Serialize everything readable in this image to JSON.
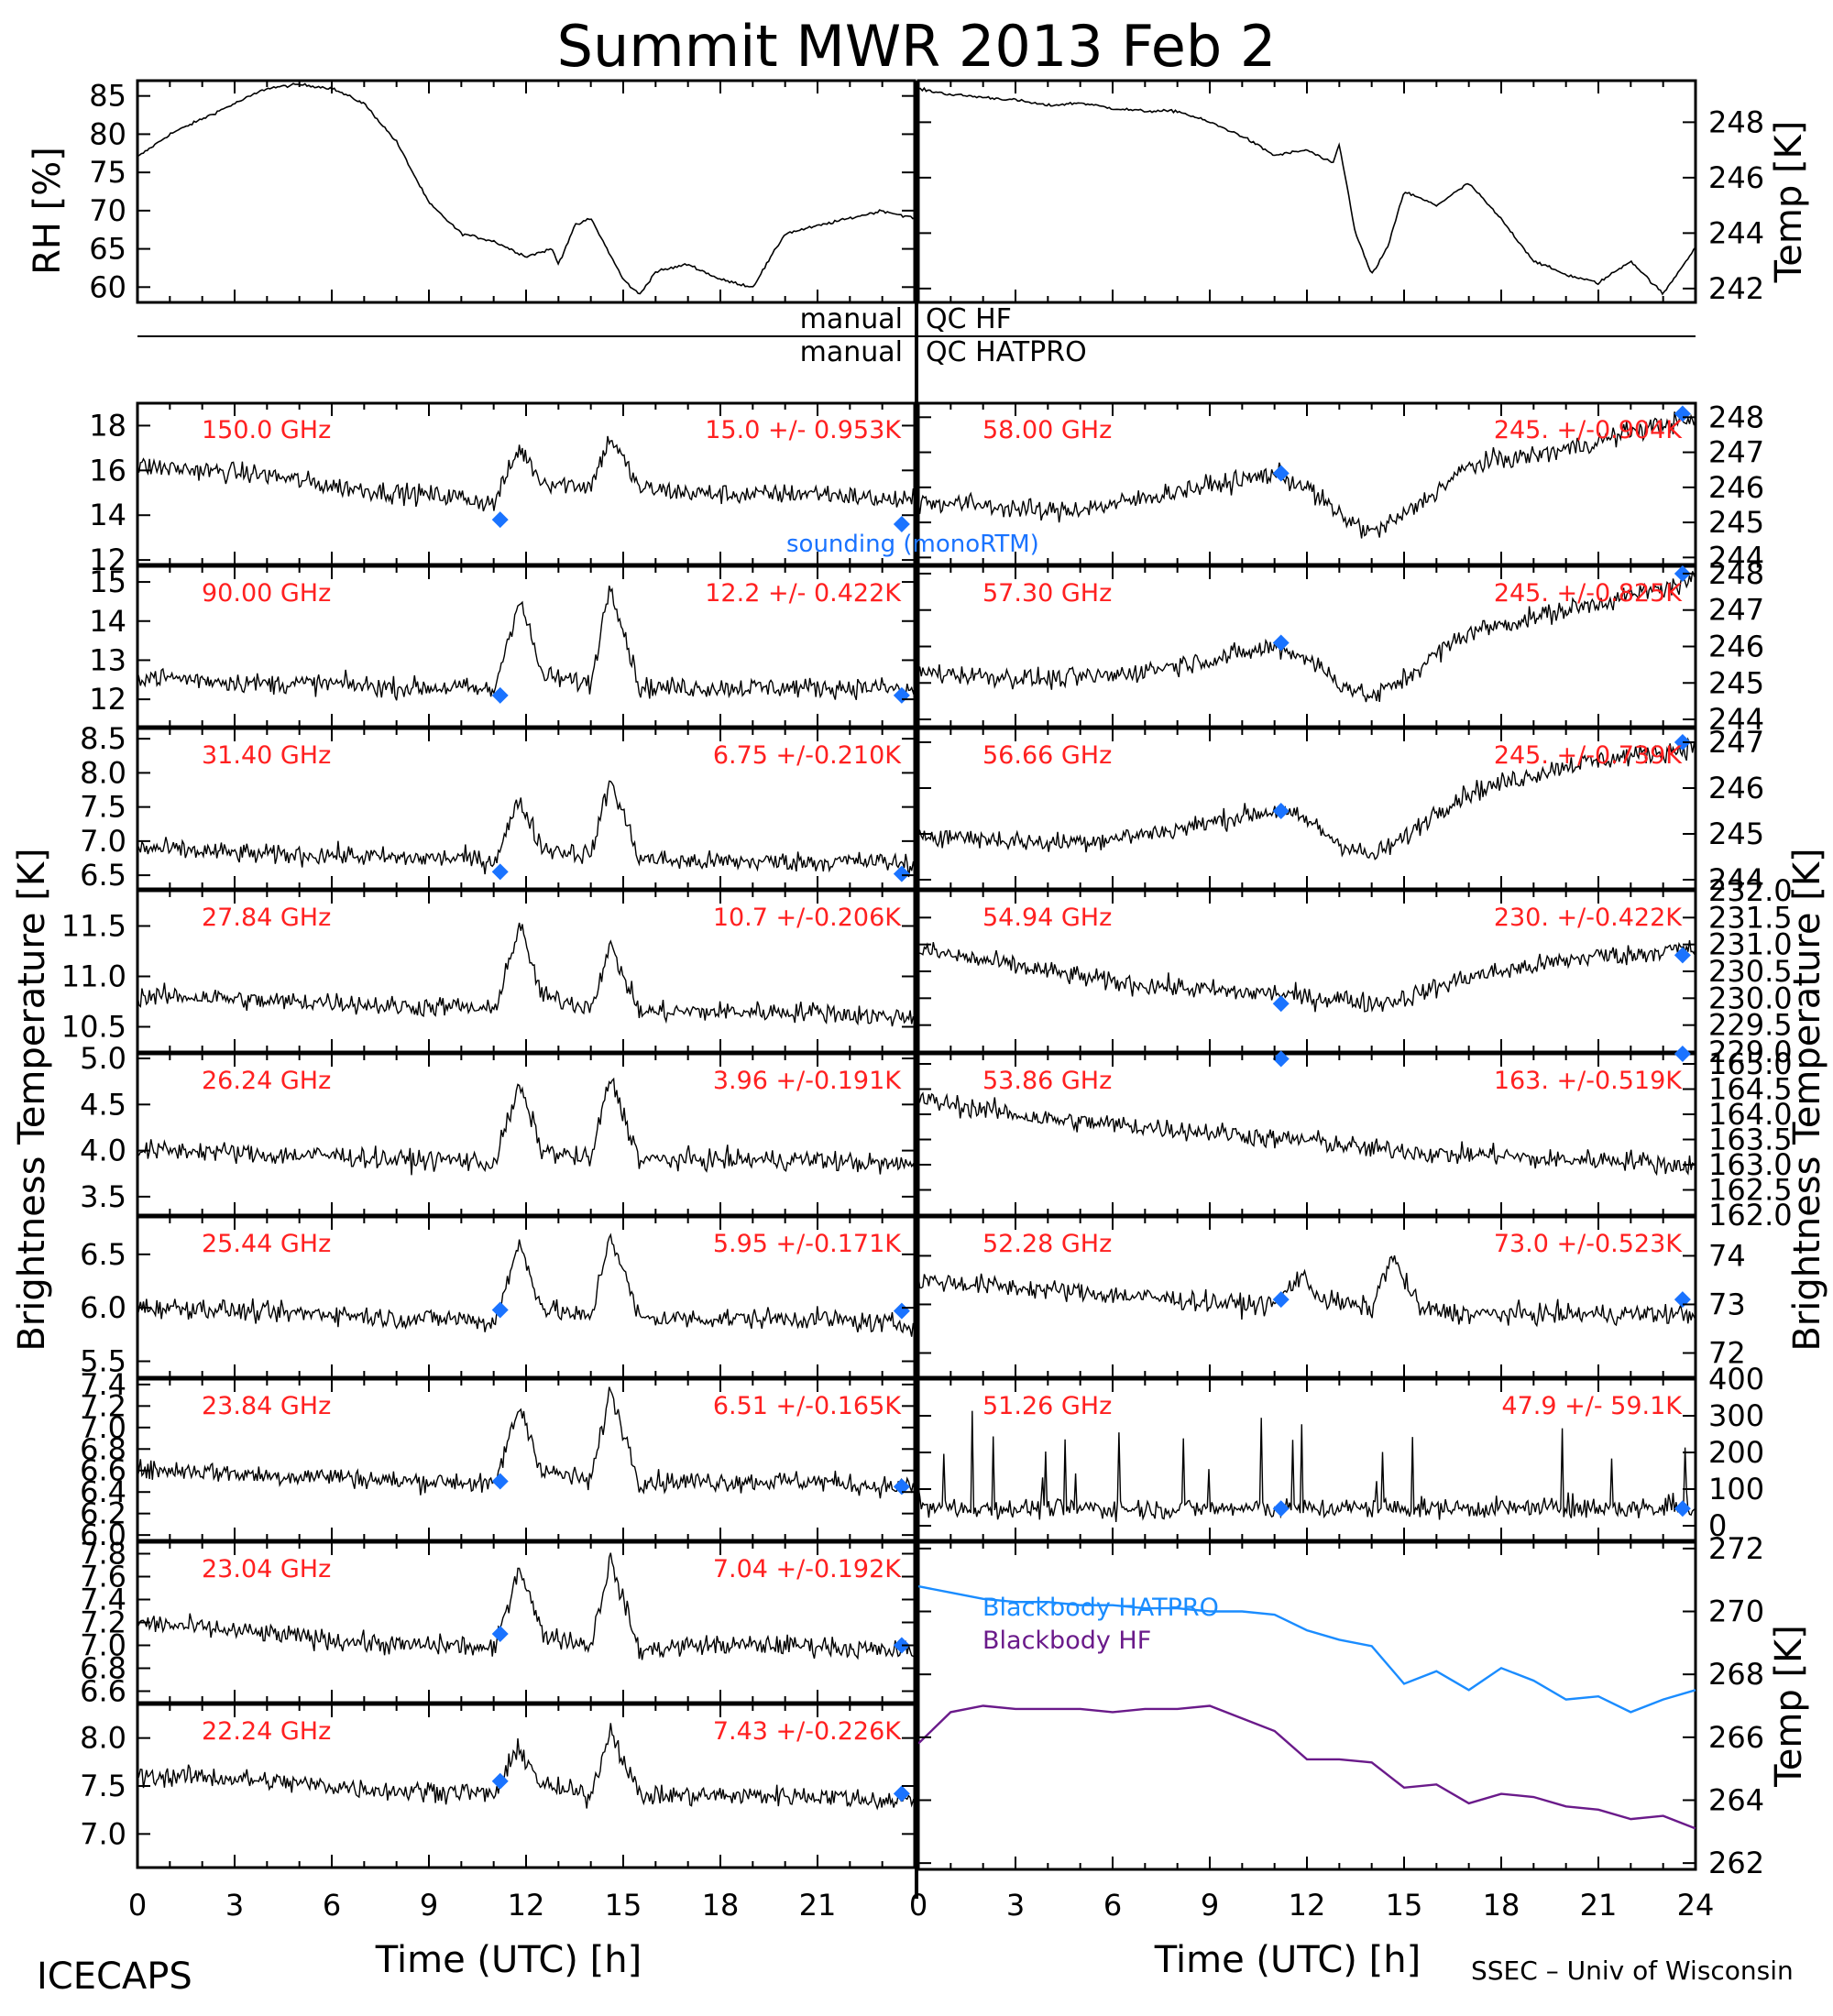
{
  "title": "Summit MWR 2013 Feb  2",
  "footer": {
    "left": "ICECAPS",
    "right": "SSEC – Univ of Wisconsin"
  },
  "qc": {
    "hf_left": "manual",
    "hf_right": "QC HF",
    "hatpro_left": "manual",
    "hatpro_right": "QC HATPRO"
  },
  "axes": {
    "x_label": "Time (UTC) [h]",
    "x_ticks": [
      "0",
      "3",
      "6",
      "9",
      "12",
      "15",
      "18",
      "21"
    ],
    "x_ticks_right": [
      "0",
      "3",
      "6",
      "9",
      "12",
      "15",
      "18",
      "21",
      "24"
    ],
    "y_label_left": "Brightness Temperature [K]",
    "y_label_right": "Brightness Temperature [K]",
    "rh_label": "RH [%]",
    "temp_label": "Temp [K]",
    "bb_temp_label": "Temp [K]"
  },
  "colors": {
    "stats": "#ff2020",
    "sounding": "#1a73ff",
    "hatpro": "#1a8cff",
    "hf": "#6a1a8a",
    "trace": "#000000"
  },
  "chart_data": [
    {
      "id": "rh",
      "type": "line",
      "ylabel": "RH [%]",
      "xlim": [
        0,
        24
      ],
      "ylim": [
        58,
        87
      ],
      "yticks": [
        "60",
        "65",
        "70",
        "75",
        "80",
        "85"
      ],
      "x": [
        0,
        1,
        2,
        3,
        4,
        5,
        6,
        7,
        8,
        9,
        10,
        11,
        12,
        12.8,
        13,
        13.5,
        14,
        14.5,
        15,
        15.5,
        16,
        17,
        18,
        19,
        20,
        21,
        22,
        23,
        24
      ],
      "y": [
        77,
        80,
        82,
        84,
        86,
        86.5,
        86,
        84,
        79,
        71,
        67,
        66,
        64,
        65,
        63,
        68,
        69,
        65,
        61,
        59,
        62,
        63,
        61,
        60,
        67,
        68,
        69,
        70,
        69
      ]
    },
    {
      "id": "temp",
      "type": "line",
      "ylabel": "Temp [K]",
      "xlim": [
        0,
        24
      ],
      "ylim": [
        241.5,
        249.5
      ],
      "yticks": [
        "242",
        "244",
        "246",
        "248"
      ],
      "x": [
        0,
        1,
        2,
        3,
        4,
        5,
        6,
        7,
        8,
        9,
        10,
        11,
        12,
        12.8,
        13,
        13.5,
        14,
        14.5,
        15,
        16,
        17,
        18,
        19,
        20,
        21,
        22,
        23,
        24
      ],
      "y": [
        249.2,
        249,
        248.9,
        248.8,
        248.6,
        248.7,
        248.5,
        248.4,
        248.4,
        248,
        247.5,
        246.8,
        247,
        246.5,
        247.2,
        244,
        242.5,
        243.5,
        245.5,
        245,
        245.8,
        244.5,
        243,
        242.5,
        242.2,
        243,
        241.8,
        243.5
      ]
    },
    {
      "id": "ch150",
      "type": "scatter",
      "freq": "150.0 GHz",
      "stat": "15.0 +/- 0.953K",
      "ylim": [
        11.8,
        19
      ],
      "yticks": [
        "12",
        "14",
        "16",
        "18"
      ],
      "x": [
        0,
        2,
        4,
        6,
        8,
        10,
        11,
        11.8,
        12.5,
        14,
        14.6,
        15.5,
        17,
        19,
        21,
        23,
        24
      ],
      "y": [
        16.2,
        16,
        15.8,
        15.3,
        15,
        14.8,
        14.5,
        17,
        15.5,
        15.3,
        17.5,
        15.2,
        15,
        14.9,
        15,
        14.7,
        14.6
      ],
      "sounding": [
        {
          "x": 11.2,
          "y": 13.8
        },
        {
          "x": 23.6,
          "y": 13.6
        }
      ],
      "legend": "sounding (monoRTM)"
    },
    {
      "id": "ch90",
      "type": "scatter",
      "freq": "90.00 GHz",
      "stat": "12.2 +/- 0.422K",
      "ylim": [
        11.3,
        15.4
      ],
      "yticks": [
        "12",
        "13",
        "14",
        "15"
      ],
      "x": [
        0,
        2,
        4,
        6,
        8,
        10,
        11,
        11.8,
        12.5,
        14,
        14.6,
        15.5,
        17,
        19,
        21,
        23,
        24
      ],
      "y": [
        12.6,
        12.5,
        12.4,
        12.4,
        12.3,
        12.3,
        12.2,
        14.6,
        12.6,
        12.4,
        15,
        12.3,
        12.3,
        12.3,
        12.3,
        12.3,
        12.2
      ],
      "sounding": [
        {
          "x": 11.2,
          "y": 12.1
        },
        {
          "x": 23.6,
          "y": 12.1
        }
      ]
    },
    {
      "id": "ch31_4",
      "type": "scatter",
      "freq": "31.40 GHz",
      "stat": "6.75 +/-0.210K",
      "ylim": [
        6.3,
        8.65
      ],
      "yticks": [
        "6.5",
        "7.0",
        "7.5",
        "8.0",
        "8.5"
      ],
      "x": [
        0,
        2,
        4,
        6,
        8,
        10,
        11,
        11.8,
        12.5,
        14,
        14.6,
        15.5,
        17,
        19,
        21,
        23,
        24
      ],
      "y": [
        6.9,
        6.85,
        6.8,
        6.8,
        6.75,
        6.75,
        6.7,
        7.6,
        6.9,
        6.8,
        7.9,
        6.75,
        6.7,
        6.7,
        6.7,
        6.7,
        6.65
      ],
      "sounding": [
        {
          "x": 11.2,
          "y": 6.55
        },
        {
          "x": 23.6,
          "y": 6.52
        }
      ]
    },
    {
      "id": "ch27_84",
      "type": "scatter",
      "freq": "27.84 GHz",
      "stat": "10.7 +/-0.206K",
      "ylim": [
        10.25,
        11.85
      ],
      "yticks": [
        "10.5",
        "11.0",
        "11.5"
      ],
      "x": [
        0,
        2,
        4,
        6,
        8,
        10,
        11,
        11.8,
        12.5,
        14,
        14.6,
        15.5,
        17,
        19,
        21,
        23,
        24
      ],
      "y": [
        10.8,
        10.8,
        10.75,
        10.75,
        10.7,
        10.7,
        10.65,
        11.5,
        10.8,
        10.7,
        11.3,
        10.65,
        10.65,
        10.65,
        10.65,
        10.6,
        10.6
      ],
      "sounding": []
    },
    {
      "id": "ch26_24",
      "type": "scatter",
      "freq": "26.24 GHz",
      "stat": "3.96 +/-0.191K",
      "ylim": [
        3.3,
        5.05
      ],
      "yticks": [
        "3.5",
        "4.0",
        "4.5",
        "5.0"
      ],
      "x": [
        0,
        2,
        4,
        6,
        8,
        10,
        11,
        11.8,
        12.5,
        14,
        14.6,
        15.5,
        17,
        19,
        21,
        23,
        24
      ],
      "y": [
        4.0,
        4.0,
        3.95,
        3.95,
        3.9,
        3.9,
        3.85,
        4.7,
        4.0,
        3.9,
        4.8,
        3.9,
        3.9,
        3.9,
        3.9,
        3.85,
        3.85
      ],
      "sounding": []
    },
    {
      "id": "ch25_44",
      "type": "scatter",
      "freq": "25.44 GHz",
      "stat": "5.95 +/-0.171K",
      "ylim": [
        5.35,
        6.85
      ],
      "yticks": [
        "5.5",
        "6.0",
        "6.5"
      ],
      "x": [
        0,
        2,
        4,
        6,
        8,
        10,
        11,
        11.8,
        12.5,
        14,
        14.6,
        15.5,
        17,
        19,
        21,
        23,
        24
      ],
      "y": [
        6.0,
        6.0,
        5.95,
        5.95,
        5.9,
        5.9,
        5.85,
        6.6,
        6.0,
        5.9,
        6.7,
        5.9,
        5.9,
        5.9,
        5.9,
        5.85,
        5.85
      ],
      "sounding": [
        {
          "x": 11.2,
          "y": 5.98
        },
        {
          "x": 23.6,
          "y": 5.97
        }
      ]
    },
    {
      "id": "ch23_84",
      "type": "scatter",
      "freq": "23.84 GHz",
      "stat": "6.51 +/-0.165K",
      "ylim": [
        5.95,
        7.45
      ],
      "yticks": [
        "6.0",
        "6.2",
        "6.4",
        "6.6",
        "6.8",
        "7.0",
        "7.2",
        "7.4"
      ],
      "x": [
        0,
        2,
        4,
        6,
        8,
        10,
        11,
        11.8,
        12.5,
        14,
        14.6,
        15.5,
        17,
        19,
        21,
        23,
        24
      ],
      "y": [
        6.6,
        6.6,
        6.55,
        6.55,
        6.5,
        6.5,
        6.45,
        7.2,
        6.6,
        6.5,
        7.35,
        6.5,
        6.5,
        6.5,
        6.5,
        6.45,
        6.45
      ],
      "sounding": [
        {
          "x": 11.2,
          "y": 6.5
        },
        {
          "x": 23.6,
          "y": 6.45
        }
      ]
    },
    {
      "id": "ch23_04",
      "type": "scatter",
      "freq": "23.04 GHz",
      "stat": "7.04 +/-0.192K",
      "ylim": [
        6.5,
        7.9
      ],
      "yticks": [
        "6.6",
        "6.8",
        "7.0",
        "7.2",
        "7.4",
        "7.6",
        "7.8"
      ],
      "x": [
        0,
        2,
        4,
        6,
        8,
        10,
        11,
        11.8,
        12.5,
        14,
        14.6,
        15.5,
        17,
        19,
        21,
        23,
        24
      ],
      "y": [
        7.2,
        7.15,
        7.1,
        7.05,
        7.0,
        7.0,
        6.95,
        7.7,
        7.1,
        7.0,
        7.75,
        6.95,
        7.0,
        7.0,
        7.0,
        6.95,
        6.95
      ],
      "sounding": [
        {
          "x": 11.2,
          "y": 7.1
        },
        {
          "x": 23.6,
          "y": 7.0
        }
      ]
    },
    {
      "id": "ch22_24",
      "type": "scatter",
      "freq": "22.24 GHz",
      "stat": "7.43 +/-0.226K",
      "ylim": [
        6.65,
        8.35
      ],
      "yticks": [
        "7.0",
        "7.5",
        "8.0"
      ],
      "x": [
        0,
        2,
        4,
        6,
        8,
        10,
        11,
        11.8,
        12.5,
        14,
        14.6,
        15.5,
        17,
        19,
        21,
        23,
        24
      ],
      "y": [
        7.6,
        7.6,
        7.55,
        7.5,
        7.45,
        7.45,
        7.4,
        7.9,
        7.5,
        7.4,
        8.1,
        7.4,
        7.4,
        7.4,
        7.4,
        7.35,
        7.35
      ],
      "sounding": [
        {
          "x": 11.2,
          "y": 7.55
        },
        {
          "x": 23.6,
          "y": 7.42
        }
      ]
    },
    {
      "id": "ch58",
      "type": "scatter",
      "freq": "58.00 GHz",
      "stat": "245. +/-0.904K",
      "ylim": [
        243.8,
        248.4
      ],
      "yticks": [
        "244",
        "245",
        "246",
        "247",
        "248"
      ],
      "x": [
        0,
        2,
        4,
        6,
        8,
        10,
        11,
        12,
        13,
        14,
        15,
        16,
        17,
        18,
        19,
        20,
        21,
        22,
        23,
        24
      ],
      "y": [
        245.6,
        245.5,
        245.3,
        245.5,
        245.9,
        246.2,
        246.4,
        246,
        245.2,
        244.7,
        245.2,
        245.9,
        246.6,
        246.8,
        246.9,
        247.1,
        247.3,
        247.6,
        247.8,
        247.9
      ],
      "sounding": [
        {
          "x": 11.2,
          "y": 246.4
        },
        {
          "x": 23.6,
          "y": 248.1
        }
      ]
    },
    {
      "id": "ch57_3",
      "type": "scatter",
      "freq": "57.30 GHz",
      "stat": "245. +/-0.825K",
      "ylim": [
        243.8,
        248.2
      ],
      "yticks": [
        "244",
        "245",
        "246",
        "247",
        "248"
      ],
      "x": [
        0,
        2,
        4,
        6,
        8,
        10,
        11,
        12,
        13,
        14,
        15,
        16,
        17,
        18,
        19,
        20,
        21,
        22,
        23,
        24
      ],
      "y": [
        245.3,
        245.2,
        245.1,
        245.2,
        245.5,
        245.8,
        246,
        245.7,
        245,
        244.6,
        245.1,
        245.8,
        246.4,
        246.6,
        246.8,
        247,
        247.2,
        247.4,
        247.6,
        247.8
      ],
      "sounding": [
        {
          "x": 11.2,
          "y": 246.1
        },
        {
          "x": 23.6,
          "y": 248
        }
      ]
    },
    {
      "id": "ch56_66",
      "type": "scatter",
      "freq": "56.66 GHz",
      "stat": "245. +/-0.739K",
      "ylim": [
        243.8,
        247.3
      ],
      "yticks": [
        "244",
        "245",
        "246",
        "247"
      ],
      "x": [
        0,
        2,
        4,
        6,
        8,
        10,
        11,
        12,
        13,
        14,
        15,
        16,
        17,
        18,
        19,
        20,
        21,
        22,
        23,
        24
      ],
      "y": [
        245,
        244.9,
        244.8,
        244.9,
        245.1,
        245.4,
        245.5,
        245.3,
        244.8,
        244.5,
        244.9,
        245.5,
        245.9,
        246.1,
        246.3,
        246.5,
        246.6,
        246.7,
        246.8,
        246.9
      ],
      "sounding": [
        {
          "x": 11.2,
          "y": 245.5
        },
        {
          "x": 23.6,
          "y": 247
        }
      ]
    },
    {
      "id": "ch54_94",
      "type": "scatter",
      "freq": "54.94 GHz",
      "stat": "230. +/-0.422K",
      "ylim": [
        229.0,
        232.0
      ],
      "yticks": [
        "229.0",
        "229.5",
        "230.0",
        "230.5",
        "231.0",
        "231.5",
        "232.0"
      ],
      "x": [
        0,
        2,
        4,
        6,
        8,
        10,
        11,
        12,
        13,
        14,
        15,
        16,
        17,
        18,
        19,
        20,
        21,
        22,
        23,
        24
      ],
      "y": [
        230.9,
        230.7,
        230.5,
        230.3,
        230.2,
        230.1,
        230.1,
        230,
        230,
        229.9,
        230,
        230.2,
        230.4,
        230.5,
        230.6,
        230.7,
        230.8,
        230.8,
        230.9,
        230.9
      ],
      "sounding": [
        {
          "x": 11.2,
          "y": 229.9
        },
        {
          "x": 23.6,
          "y": 230.8
        }
      ]
    },
    {
      "id": "ch53_86",
      "type": "scatter",
      "freq": "53.86 GHz",
      "stat": "163. +/-0.519K",
      "ylim": [
        162.0,
        165.2
      ],
      "yticks": [
        "162.0",
        "162.5",
        "163.0",
        "163.5",
        "164.0",
        "164.5",
        "165.0"
      ],
      "x": [
        0,
        2,
        4,
        6,
        8,
        10,
        11,
        12,
        13,
        14,
        15,
        16,
        17,
        18,
        19,
        20,
        21,
        22,
        23,
        24
      ],
      "y": [
        164.3,
        164.1,
        163.9,
        163.8,
        163.7,
        163.6,
        163.5,
        163.5,
        163.4,
        163.3,
        163.3,
        163.2,
        163.2,
        163.2,
        163.1,
        163.1,
        163.1,
        163.1,
        163.0,
        163.0
      ],
      "sounding": [
        {
          "x": 11.2,
          "y": 165.1
        },
        {
          "x": 23.6,
          "y": 165.2
        }
      ]
    },
    {
      "id": "ch52_28",
      "type": "scatter",
      "freq": "52.28 GHz",
      "stat": "73.0 +/-0.523K",
      "ylim": [
        71.5,
        74.8
      ],
      "yticks": [
        "72",
        "73",
        "74"
      ],
      "x": [
        0,
        2,
        4,
        6,
        8,
        10,
        11,
        11.8,
        12.5,
        14,
        14.6,
        15.5,
        17,
        19,
        21,
        23,
        24
      ],
      "y": [
        73.5,
        73.4,
        73.3,
        73.2,
        73.1,
        73.0,
        73.0,
        73.6,
        73.1,
        72.9,
        74.0,
        72.9,
        72.8,
        72.8,
        72.8,
        72.8,
        72.8
      ],
      "sounding": [
        {
          "x": 11.2,
          "y": 73.1
        },
        {
          "x": 23.6,
          "y": 73.1
        }
      ]
    },
    {
      "id": "ch51_26",
      "type": "scatter",
      "freq": "51.26 GHz",
      "stat": "47.9 +/- 59.1K",
      "ylim": [
        -40,
        400
      ],
      "yticks": [
        "0",
        "100",
        "200",
        "300",
        "400"
      ],
      "x": [
        0,
        2,
        4,
        6,
        8,
        10,
        12,
        14,
        16,
        18,
        20,
        22,
        24
      ],
      "y": [
        50,
        48,
        48,
        47,
        47,
        47,
        47,
        48,
        48,
        48,
        47,
        47,
        47
      ],
      "sounding": [
        {
          "x": 11.2,
          "y": 47
        },
        {
          "x": 23.6,
          "y": 47
        }
      ]
    },
    {
      "id": "blackbody",
      "type": "line",
      "ylabel": "Temp [K]",
      "xlim": [
        0,
        24
      ],
      "ylim": [
        261.8,
        272.2
      ],
      "yticks": [
        "262",
        "264",
        "266",
        "268",
        "270",
        "272"
      ],
      "series": [
        {
          "name": "Blackbody HATPRO",
          "x": [
            0,
            1,
            2,
            3,
            4,
            5,
            6,
            7,
            8,
            9,
            10,
            11,
            12,
            13,
            14,
            15,
            16,
            17,
            18,
            19,
            20,
            21,
            22,
            23,
            24
          ],
          "y": [
            270.8,
            270.6,
            270.4,
            270.3,
            270.3,
            270.2,
            270.2,
            270.1,
            270.1,
            270,
            270,
            269.9,
            269.4,
            269.1,
            268.9,
            267.7,
            268.1,
            267.5,
            268.2,
            267.8,
            267.2,
            267.3,
            266.8,
            267.2,
            267.5
          ]
        },
        {
          "name": "Blackbody HF",
          "x": [
            0,
            1,
            2,
            3,
            4,
            5,
            6,
            7,
            8,
            9,
            10,
            11,
            12,
            13,
            14,
            15,
            16,
            17,
            18,
            19,
            20,
            21,
            22,
            23,
            24
          ],
          "y": [
            265.8,
            266.8,
            267.0,
            266.9,
            266.9,
            266.9,
            266.8,
            266.9,
            266.9,
            267.0,
            266.6,
            266.2,
            265.3,
            265.3,
            265.2,
            264.4,
            264.5,
            263.9,
            264.2,
            264.1,
            263.8,
            263.7,
            263.4,
            263.5,
            263.1
          ]
        }
      ]
    }
  ]
}
